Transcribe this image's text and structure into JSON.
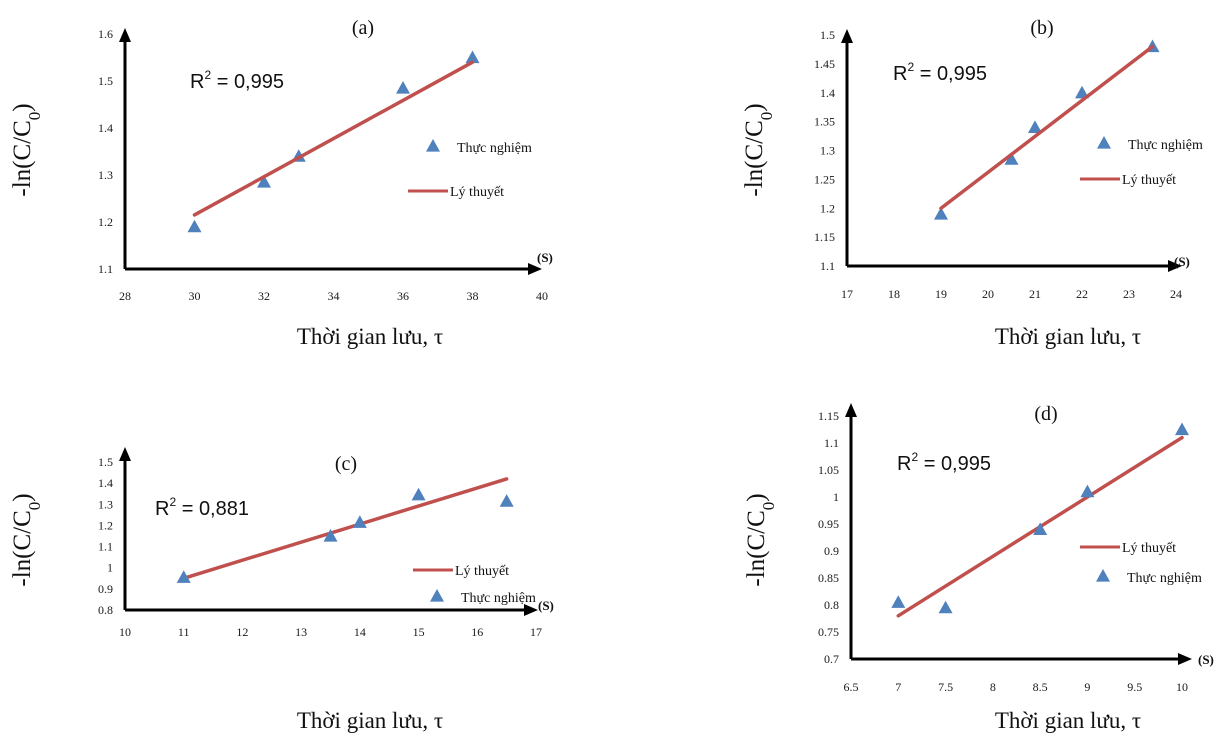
{
  "colors": {
    "axis": "#000000",
    "marker": "#4f81bd",
    "line": "#c0504d"
  },
  "chart_data": [
    {
      "type": "scatter",
      "title": "(a)",
      "xlabel": "Thời gian lưu, τ",
      "ylabel": "-ln(C/C0)",
      "unit": "(S)",
      "r2": "0,995",
      "xlim": [
        28,
        40
      ],
      "ylim": [
        1.1,
        1.6
      ],
      "xticks": [
        28,
        30,
        32,
        34,
        36,
        38,
        40
      ],
      "yticks": [
        1.1,
        1.2,
        1.3,
        1.4,
        1.5,
        1.6
      ],
      "series": [
        {
          "name": "Thực nghiệm",
          "kind": "marker",
          "x": [
            30,
            32,
            33,
            36,
            38
          ],
          "y": [
            1.19,
            1.285,
            1.34,
            1.485,
            1.55
          ]
        },
        {
          "name": "Lý thuyết",
          "kind": "line",
          "x": [
            30,
            38
          ],
          "y": [
            1.215,
            1.54
          ]
        }
      ]
    },
    {
      "type": "scatter",
      "title": "(b)",
      "xlabel": "Thời gian lưu, τ",
      "ylabel": "-ln(C/C0)",
      "unit": "(S)",
      "r2": "0,995",
      "xlim": [
        17,
        24
      ],
      "ylim": [
        1.1,
        1.5
      ],
      "xticks": [
        17,
        18,
        19,
        20,
        21,
        22,
        23,
        24
      ],
      "yticks": [
        1.1,
        1.15,
        1.2,
        1.25,
        1.3,
        1.35,
        1.4,
        1.45,
        1.5
      ],
      "series": [
        {
          "name": "Thực nghiệm",
          "kind": "marker",
          "x": [
            19,
            20.5,
            21,
            22,
            23.5
          ],
          "y": [
            1.19,
            1.285,
            1.34,
            1.4,
            1.48
          ]
        },
        {
          "name": "Lý thuyết",
          "kind": "line",
          "x": [
            19,
            23.5
          ],
          "y": [
            1.2,
            1.48
          ]
        }
      ]
    },
    {
      "type": "scatter",
      "title": "(c)",
      "xlabel": "Thời gian lưu, τ",
      "ylabel": "-ln(C/C0)",
      "unit": "(S)",
      "r2": "0,881",
      "xlim": [
        10,
        17
      ],
      "ylim": [
        0.8,
        1.5
      ],
      "xticks": [
        10,
        11,
        12,
        13,
        14,
        15,
        16,
        17
      ],
      "yticks": [
        0.8,
        0.9,
        1,
        1.1,
        1.2,
        1.3,
        1.4,
        1.5
      ],
      "series": [
        {
          "name": "Lý thuyết",
          "kind": "line",
          "x": [
            11,
            16.5
          ],
          "y": [
            0.95,
            1.42
          ]
        },
        {
          "name": "Thực nghiệm",
          "kind": "marker",
          "x": [
            11,
            13.5,
            14,
            15,
            16.5
          ],
          "y": [
            0.955,
            1.15,
            1.215,
            1.345,
            1.315
          ]
        }
      ]
    },
    {
      "type": "scatter",
      "title": "(d)",
      "xlabel": "Thời gian lưu, τ",
      "ylabel": "-ln(C/C0)",
      "unit": "(S)",
      "r2": "0,995",
      "xlim": [
        6.5,
        10
      ],
      "ylim": [
        0.7,
        1.15
      ],
      "xticks": [
        6.5,
        7,
        7.5,
        8,
        8.5,
        9,
        9.5,
        10
      ],
      "yticks": [
        0.7,
        0.75,
        0.8,
        0.85,
        0.9,
        0.95,
        1,
        1.05,
        1.1,
        1.15
      ],
      "series": [
        {
          "name": "Lý thuyết",
          "kind": "line",
          "x": [
            7,
            10
          ],
          "y": [
            0.78,
            1.11
          ]
        },
        {
          "name": "Thực nghiệm",
          "kind": "marker",
          "x": [
            7,
            7.5,
            8.5,
            9,
            10
          ],
          "y": [
            0.805,
            0.795,
            0.94,
            1.01,
            1.125
          ]
        }
      ]
    }
  ]
}
